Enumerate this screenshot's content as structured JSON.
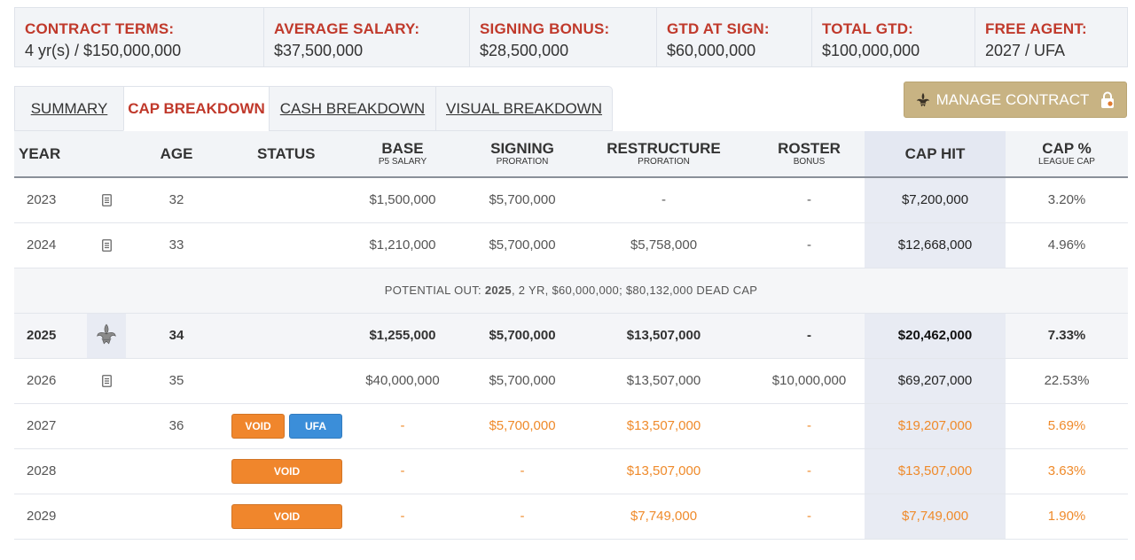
{
  "summary": [
    {
      "label": "CONTRACT TERMS:",
      "value": "4 yr(s) / $150,000,000"
    },
    {
      "label": "AVERAGE SALARY:",
      "value": "$37,500,000"
    },
    {
      "label": "SIGNING BONUS:",
      "value": "$28,500,000"
    },
    {
      "label": "GTD AT SIGN:",
      "value": "$60,000,000"
    },
    {
      "label": "TOTAL GTD:",
      "value": "$100,000,000"
    },
    {
      "label": "FREE AGENT:",
      "value": "2027 / UFA"
    }
  ],
  "tabs": [
    "SUMMARY",
    "CAP BREAKDOWN",
    "CASH BREAKDOWN",
    "VISUAL BREAKDOWN"
  ],
  "active_tab": "CAP BREAKDOWN",
  "manage_button": {
    "label": "MANAGE CONTRACT",
    "icon": "fleur-de-lis-icon",
    "trailing_icon": "lock-icon"
  },
  "colors": {
    "accent_red": "#c0392b",
    "gold": "#c8b383",
    "void_orange": "#f0862c",
    "ufa_blue": "#3b8ed9"
  },
  "table": {
    "headers": {
      "year": "YEAR",
      "age": "AGE",
      "status": "STATUS",
      "base": {
        "label": "BASE",
        "sub": "P5 SALARY"
      },
      "signing": {
        "label": "SIGNING",
        "sub": "PRORATION"
      },
      "restructure": {
        "label": "RESTRUCTURE",
        "sub": "PRORATION"
      },
      "roster": {
        "label": "ROSTER",
        "sub": "BONUS"
      },
      "cap_hit": "CAP HIT",
      "cap_pct": {
        "label": "CAP %",
        "sub": "LEAGUE CAP"
      }
    },
    "rows": [
      {
        "year": "2023",
        "age": "32",
        "base": "$1,500,000",
        "signing": "$5,700,000",
        "restructure": "-",
        "roster": "-",
        "cap_hit": "$7,200,000",
        "cap_pct": "3.20%"
      },
      {
        "year": "2024",
        "age": "33",
        "base": "$1,210,000",
        "signing": "$5,700,000",
        "restructure": "$5,758,000",
        "roster": "-",
        "cap_hit": "$12,668,000",
        "cap_pct": "4.96%"
      },
      {
        "potential": {
          "prefix": "POTENTIAL OUT: ",
          "year": "2025",
          "suffix": ", 2 YR, $60,000,000; $80,132,000 DEAD CAP"
        }
      },
      {
        "year": "2025",
        "age": "34",
        "base": "$1,255,000",
        "signing": "$5,700,000",
        "restructure": "$13,507,000",
        "roster": "-",
        "cap_hit": "$20,462,000",
        "cap_pct": "7.33%"
      },
      {
        "year": "2026",
        "age": "35",
        "base": "$40,000,000",
        "signing": "$5,700,000",
        "restructure": "$13,507,000",
        "roster": "$10,000,000",
        "cap_hit": "$69,207,000",
        "cap_pct": "22.53%"
      },
      {
        "year": "2027",
        "age": "36",
        "status": [
          "VOID",
          "UFA"
        ],
        "base": "-",
        "signing": "$5,700,000",
        "restructure": "$13,507,000",
        "roster": "-",
        "cap_hit": "$19,207,000",
        "cap_pct": "5.69%"
      },
      {
        "year": "2028",
        "status": [
          "VOID"
        ],
        "base": "-",
        "signing": "-",
        "restructure": "$13,507,000",
        "roster": "-",
        "cap_hit": "$13,507,000",
        "cap_pct": "3.63%"
      },
      {
        "year": "2029",
        "status": [
          "VOID"
        ],
        "base": "-",
        "signing": "-",
        "restructure": "$7,749,000",
        "roster": "-",
        "cap_hit": "$7,749,000",
        "cap_pct": "1.90%"
      }
    ]
  }
}
